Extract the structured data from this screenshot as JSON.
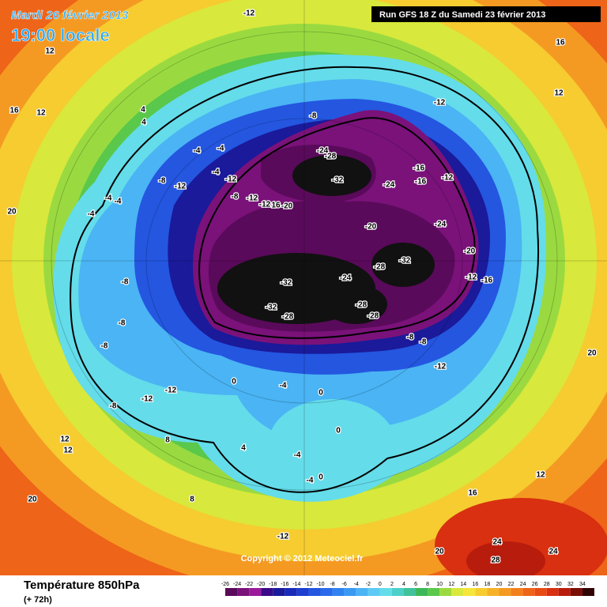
{
  "header": {
    "date": "Mardi 26 février 2013",
    "time": "19:00 locale",
    "run": "Run GFS 18 Z du Samedi 23 février 2013"
  },
  "copyright": "Copyright © 2012 Meteociel.fr",
  "footer": {
    "variable": "Température 850hPa",
    "lead": "(+ 72h)"
  },
  "legend": {
    "values": [
      -26,
      -24,
      -22,
      -20,
      -18,
      -16,
      -14,
      -12,
      -10,
      -8,
      -6,
      -4,
      -2,
      0,
      2,
      4,
      6,
      8,
      10,
      12,
      14,
      16,
      18,
      20,
      22,
      24,
      26,
      28,
      30,
      32,
      34
    ],
    "colors": [
      "#5a0a5a",
      "#7a127a",
      "#9a1a9a",
      "#3a0a8a",
      "#1a1a9a",
      "#1a2ab8",
      "#1e3ed0",
      "#2456e0",
      "#2a6aea",
      "#2f82f0",
      "#3a9af2",
      "#4ab4f4",
      "#5ccaf4",
      "#64dcea",
      "#4cd0c8",
      "#40c29a",
      "#3cb85a",
      "#5ac84a",
      "#9ada40",
      "#d8e83c",
      "#f4e63a",
      "#f6cc30",
      "#f6b228",
      "#f49a22",
      "#f2801e",
      "#ee6418",
      "#e84a14",
      "#d83010",
      "#b81c0c",
      "#7a0e06",
      "#300404"
    ]
  },
  "map_labels": [
    -12,
    12,
    16,
    16,
    12,
    4,
    4,
    -8,
    -12,
    12,
    -4,
    -4,
    -24,
    -28,
    -32,
    -16,
    -16,
    -12,
    -24,
    -12,
    -8,
    -4,
    -12,
    -8,
    -12,
    -12,
    16,
    -20,
    -20,
    -24,
    -20,
    -28,
    -32,
    -24,
    -32,
    -32,
    -28,
    -28,
    -28,
    -12,
    -16,
    -8,
    -8,
    -12,
    20,
    20,
    -4,
    -4,
    -4,
    -8,
    -8,
    -8,
    -12,
    -12,
    -8,
    0,
    -4,
    0,
    0,
    -4,
    -4,
    0,
    4,
    8,
    8,
    12,
    20,
    16,
    24,
    28,
    24,
    20,
    -12,
    12,
    12
  ]
}
